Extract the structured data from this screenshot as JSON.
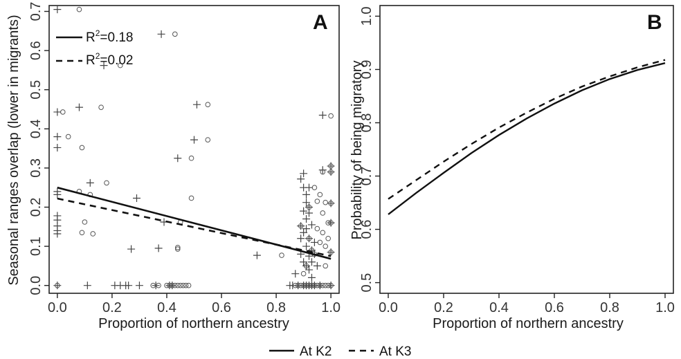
{
  "chart_data": [
    {
      "panel": "A",
      "type": "scatter",
      "xlabel": "Proportion of northern ancestry",
      "ylabel": "Seasonal ranges overlap (lower in migrants)",
      "xlim": [
        -0.03,
        1.03
      ],
      "ylim": [
        -0.02,
        0.715
      ],
      "xticks": [
        0.0,
        0.2,
        0.4,
        0.6,
        0.8,
        1.0
      ],
      "xtick_labels": [
        "0.0",
        "0.2",
        "0.4",
        "0.6",
        "0.8",
        "1.0"
      ],
      "yticks": [
        0.0,
        0.1,
        0.2,
        0.3,
        0.4,
        0.5,
        0.6,
        0.7
      ],
      "ytick_labels": [
        "0.0",
        "0.1",
        "0.2",
        "0.3",
        "0.4",
        "0.5",
        "0.6",
        "0.7"
      ],
      "legend": [
        {
          "label": "R",
          "sup": "2",
          "value": "=0.18",
          "linestyle": "solid"
        },
        {
          "label": "R",
          "sup": "2",
          "value": "=0.02",
          "linestyle": "dashed"
        }
      ],
      "series": [
        {
          "marker": "plus",
          "points": [
            [
              0.0,
              0.705
            ],
            [
              0.0,
              0.443
            ],
            [
              0.0,
              0.38
            ],
            [
              0.0,
              0.352
            ],
            [
              0.0,
              0.24
            ],
            [
              0.0,
              0.232
            ],
            [
              0.0,
              0.178
            ],
            [
              0.0,
              0.167
            ],
            [
              0.0,
              0.152
            ],
            [
              0.0,
              0.14
            ],
            [
              0.0,
              0.132
            ],
            [
              0.0,
              0.0
            ],
            [
              0.08,
              0.455
            ],
            [
              0.11,
              0.0
            ],
            [
              0.12,
              0.262
            ],
            [
              0.17,
              0.562
            ],
            [
              0.21,
              0.0
            ],
            [
              0.23,
              0.0
            ],
            [
              0.25,
              0.0
            ],
            [
              0.26,
              0.0
            ],
            [
              0.27,
              0.093
            ],
            [
              0.29,
              0.223
            ],
            [
              0.3,
              0.0
            ],
            [
              0.36,
              0.0
            ],
            [
              0.37,
              0.095
            ],
            [
              0.38,
              0.642
            ],
            [
              0.39,
              0.162
            ],
            [
              0.41,
              0.0
            ],
            [
              0.42,
              0.0
            ],
            [
              0.44,
              0.325
            ],
            [
              0.5,
              0.372
            ],
            [
              0.51,
              0.462
            ],
            [
              0.73,
              0.077
            ],
            [
              0.85,
              0.0
            ],
            [
              0.86,
              0.0
            ],
            [
              0.87,
              0.03
            ],
            [
              0.88,
              0.0
            ],
            [
              0.89,
              0.272
            ],
            [
              0.89,
              0.152
            ],
            [
              0.89,
              0.12
            ],
            [
              0.89,
              0.08
            ],
            [
              0.9,
              0.286
            ],
            [
              0.9,
              0.25
            ],
            [
              0.9,
              0.19
            ],
            [
              0.9,
              0.135
            ],
            [
              0.9,
              0.06
            ],
            [
              0.9,
              0.0
            ],
            [
              0.91,
              0.232
            ],
            [
              0.91,
              0.212
            ],
            [
              0.91,
              0.17
            ],
            [
              0.91,
              0.145
            ],
            [
              0.91,
              0.1
            ],
            [
              0.91,
              0.05
            ],
            [
              0.91,
              0.0
            ],
            [
              0.92,
              0.25
            ],
            [
              0.92,
              0.2
            ],
            [
              0.92,
              0.185
            ],
            [
              0.92,
              0.12
            ],
            [
              0.92,
              0.075
            ],
            [
              0.92,
              0.04
            ],
            [
              0.92,
              0.0
            ],
            [
              0.93,
              0.155
            ],
            [
              0.93,
              0.09
            ],
            [
              0.93,
              0.06
            ],
            [
              0.93,
              0.02
            ],
            [
              0.93,
              0.0
            ],
            [
              0.94,
              0.11
            ],
            [
              0.94,
              0.08
            ],
            [
              0.94,
              0.0
            ],
            [
              0.95,
              0.05
            ],
            [
              0.96,
              0.0
            ],
            [
              0.97,
              0.435
            ],
            [
              0.97,
              0.295
            ],
            [
              1.0,
              0.305
            ],
            [
              1.0,
              0.29
            ],
            [
              1.0,
              0.21
            ],
            [
              1.0,
              0.16
            ],
            [
              1.0,
              0.085
            ],
            [
              1.0,
              0.0
            ]
          ]
        },
        {
          "marker": "circle",
          "points": [
            [
              0.0,
              0.0
            ],
            [
              0.02,
              0.443
            ],
            [
              0.04,
              0.38
            ],
            [
              0.08,
              0.705
            ],
            [
              0.08,
              0.24
            ],
            [
              0.09,
              0.352
            ],
            [
              0.09,
              0.135
            ],
            [
              0.1,
              0.162
            ],
            [
              0.12,
              0.232
            ],
            [
              0.13,
              0.132
            ],
            [
              0.16,
              0.455
            ],
            [
              0.18,
              0.262
            ],
            [
              0.23,
              0.562
            ],
            [
              0.35,
              0.0
            ],
            [
              0.37,
              0.0
            ],
            [
              0.4,
              0.0
            ],
            [
              0.41,
              0.0
            ],
            [
              0.42,
              0.0
            ],
            [
              0.43,
              0.0
            ],
            [
              0.44,
              0.0
            ],
            [
              0.45,
              0.0
            ],
            [
              0.46,
              0.0
            ],
            [
              0.47,
              0.0
            ],
            [
              0.48,
              0.0
            ],
            [
              0.43,
              0.642
            ],
            [
              0.44,
              0.097
            ],
            [
              0.44,
              0.093
            ],
            [
              0.45,
              0.162
            ],
            [
              0.49,
              0.325
            ],
            [
              0.49,
              0.223
            ],
            [
              0.55,
              0.462
            ],
            [
              0.55,
              0.372
            ],
            [
              0.82,
              0.077
            ],
            [
              0.87,
              0.0
            ],
            [
              0.88,
              0.0
            ],
            [
              0.89,
              0.0
            ],
            [
              0.89,
              0.152
            ],
            [
              0.9,
              0.0
            ],
            [
              0.9,
              0.03
            ],
            [
              0.91,
              0.0
            ],
            [
              0.91,
              0.05
            ],
            [
              0.92,
              0.0
            ],
            [
              0.92,
              0.12
            ],
            [
              0.92,
              0.2
            ],
            [
              0.93,
              0.0
            ],
            [
              0.93,
              0.09
            ],
            [
              0.94,
              0.0
            ],
            [
              0.94,
              0.08
            ],
            [
              0.94,
              0.25
            ],
            [
              0.95,
              0.0
            ],
            [
              0.95,
              0.145
            ],
            [
              0.95,
              0.215
            ],
            [
              0.96,
              0.0
            ],
            [
              0.96,
              0.232
            ],
            [
              0.96,
              0.11
            ],
            [
              0.97,
              0.0
            ],
            [
              0.97,
              0.185
            ],
            [
              0.97,
              0.29
            ],
            [
              0.97,
              0.135
            ],
            [
              0.98,
              0.0
            ],
            [
              0.98,
              0.05
            ],
            [
              0.98,
              0.212
            ],
            [
              0.98,
              0.1
            ],
            [
              0.99,
              0.0
            ],
            [
              0.99,
              0.16
            ],
            [
              0.99,
              0.12
            ],
            [
              1.0,
              0.433
            ],
            [
              1.0,
              0.305
            ],
            [
              1.0,
              0.29
            ],
            [
              1.0,
              0.21
            ],
            [
              1.0,
              0.16
            ],
            [
              1.0,
              0.085
            ],
            [
              1.0,
              0.0
            ]
          ]
        }
      ],
      "lines": [
        {
          "style": "solid",
          "x": [
            0.0,
            1.0
          ],
          "y": [
            0.25,
            0.068
          ]
        },
        {
          "style": "dashed",
          "x": [
            0.0,
            1.0
          ],
          "y": [
            0.222,
            0.075
          ]
        }
      ]
    },
    {
      "panel": "B",
      "type": "line",
      "xlabel": "Proportion of northern ancestry",
      "ylabel": "Probability of being migratory",
      "xlim": [
        -0.03,
        1.03
      ],
      "ylim": [
        0.48,
        1.02
      ],
      "xticks": [
        0.0,
        0.2,
        0.4,
        0.6,
        0.8,
        1.0
      ],
      "xtick_labels": [
        "0.0",
        "0.2",
        "0.4",
        "0.6",
        "0.8",
        "1.0"
      ],
      "yticks": [
        0.5,
        0.6,
        0.7,
        0.8,
        0.9,
        1.0
      ],
      "ytick_labels": [
        "0.5",
        "0.6",
        "0.7",
        "0.8",
        "0.9",
        "1.0"
      ],
      "series": [
        {
          "style": "solid",
          "x": [
            0.0,
            0.1,
            0.2,
            0.3,
            0.4,
            0.5,
            0.6,
            0.7,
            0.8,
            0.9,
            1.0
          ],
          "y": [
            0.628,
            0.668,
            0.706,
            0.743,
            0.777,
            0.808,
            0.836,
            0.861,
            0.882,
            0.899,
            0.912
          ]
        },
        {
          "style": "dashed",
          "x": [
            0.0,
            0.1,
            0.2,
            0.3,
            0.4,
            0.5,
            0.6,
            0.7,
            0.8,
            0.9,
            1.0
          ],
          "y": [
            0.657,
            0.692,
            0.727,
            0.76,
            0.791,
            0.819,
            0.845,
            0.868,
            0.887,
            0.904,
            0.918
          ]
        }
      ]
    }
  ],
  "figure_legend": [
    {
      "label": "At K2",
      "linestyle": "solid"
    },
    {
      "label": "At K3",
      "linestyle": "dashed"
    }
  ]
}
